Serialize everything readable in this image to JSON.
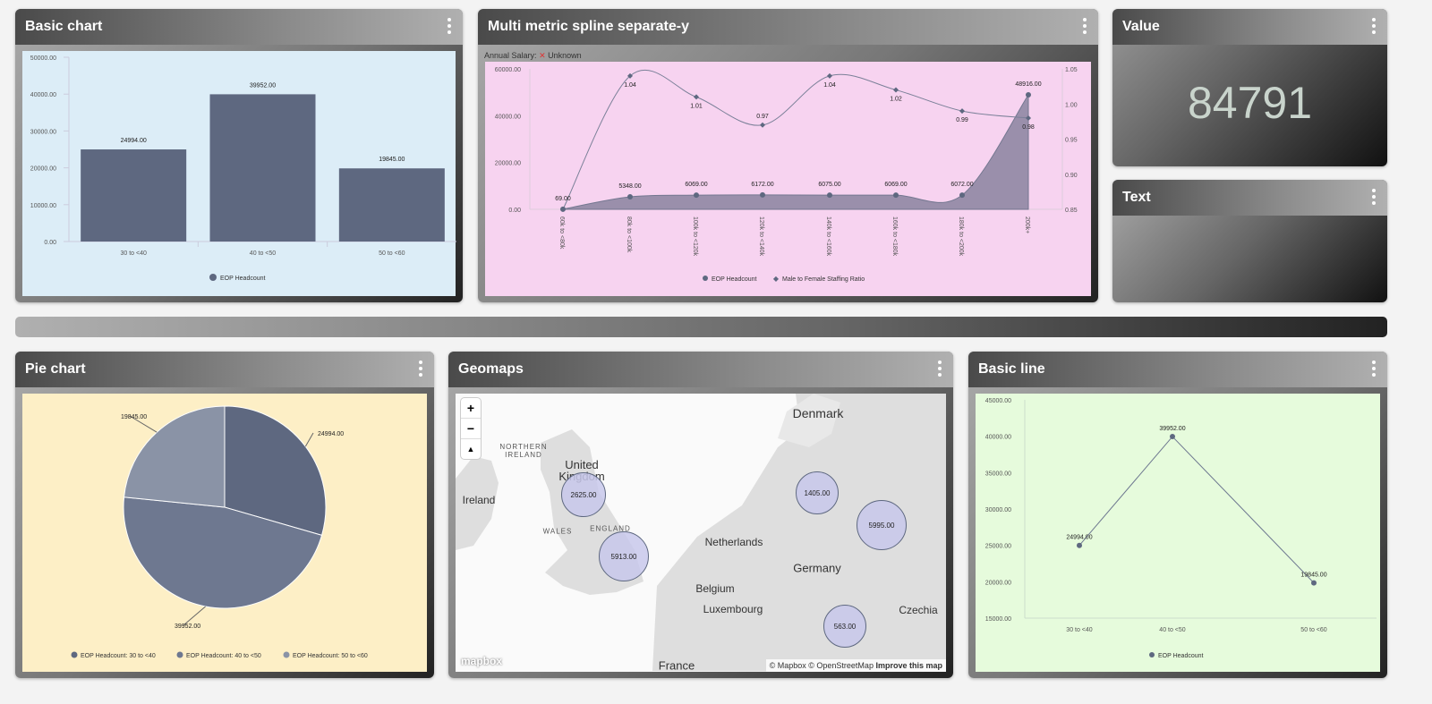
{
  "panels": {
    "basic_chart": "Basic chart",
    "multi": "Multi metric spline separate-y",
    "value": "Value",
    "text": "Text",
    "pie": "Pie chart",
    "geomaps": "Geomaps",
    "basic_line": "Basic line"
  },
  "value_panel": {
    "value": "84791"
  },
  "multi_filter": {
    "label": "Annual Salary:",
    "value": "Unknown"
  },
  "colors": {
    "series": "#5e6880",
    "bar_bg": "#dcedf7",
    "multi_bg": "#f7d3f0",
    "pie_bg": "#fdefc6",
    "line_bg": "#e6fbdc"
  },
  "chart_data": [
    {
      "type": "bar",
      "title": "Basic chart",
      "categories": [
        "30 to <40",
        "40 to <50",
        "50 to <60"
      ],
      "values": [
        24994,
        39952,
        19845
      ],
      "labels": [
        "24994.00",
        "39952.00",
        "19845.00"
      ],
      "yticks": [
        "0.00",
        "10000.00",
        "20000.00",
        "30000.00",
        "40000.00",
        "50000.00"
      ],
      "ylim": [
        0,
        50000
      ],
      "legend": "EOP Headcount"
    },
    {
      "type": "line",
      "title": "Multi metric spline separate-y",
      "categories": [
        "60k to <80k",
        "80k to <100k",
        "100k to <120k",
        "120k to <140k",
        "140k to <160k",
        "160k to <180k",
        "180k to <200k",
        "200k+"
      ],
      "series": [
        {
          "name": "EOP Headcount",
          "values": [
            69,
            5348,
            6069,
            6172,
            6075,
            6069,
            6072,
            48916
          ],
          "labels": [
            "69.00",
            "5348.00",
            "6069.00",
            "6172.00",
            "6075.00",
            "6069.00",
            "6072.00",
            "48916.00"
          ]
        },
        {
          "name": "Male to Female Staffing Ratio",
          "values": [
            0.85,
            1.04,
            1.01,
            0.97,
            1.04,
            1.02,
            0.99,
            0.98
          ],
          "labels": [
            "",
            "1.04",
            "1.01",
            "0.97",
            "1.04",
            "1.02",
            "0.99",
            "0.98"
          ]
        }
      ],
      "yticks_left": [
        "0.00",
        "20000.00",
        "40000.00",
        "60000.00"
      ],
      "ylim_left": [
        0,
        60000
      ],
      "yticks_right": [
        "0.85",
        "0.90",
        "0.95",
        "1.00",
        "1.05"
      ],
      "ylim_right": [
        0.85,
        1.05
      ]
    },
    {
      "type": "pie",
      "title": "Pie chart",
      "values": [
        24994,
        39952,
        19845
      ],
      "labels": [
        "24994.00",
        "39952.00",
        "19845.00"
      ],
      "legend": [
        "EOP Headcount: 30 to <40",
        "EOP Headcount: 40 to <50",
        "EOP Headcount: 50 to <60"
      ],
      "colors": [
        "#5e6880",
        "#6e7890",
        "#8a93a6"
      ]
    },
    {
      "type": "line",
      "title": "Basic line",
      "categories": [
        "30 to <40",
        "40 to <50",
        "50 to <60"
      ],
      "values": [
        24994,
        39952,
        19845
      ],
      "labels": [
        "24994.00",
        "39952.00",
        "19845.00"
      ],
      "yticks": [
        "15000.00",
        "20000.00",
        "25000.00",
        "30000.00",
        "35000.00",
        "40000.00",
        "45000.00"
      ],
      "ylim": [
        15000,
        45000
      ],
      "legend": "EOP Headcount"
    }
  ],
  "map": {
    "places": [
      "Denmark",
      "United Kingdom",
      "Ireland",
      "NORTHERN IRELAND",
      "WALES",
      "ENGLAND",
      "Netherlands",
      "Germany",
      "Belgium",
      "Luxembourg",
      "Czechia",
      "France"
    ],
    "bubbles": [
      "2625.00",
      "5913.00",
      "1405.00",
      "5995.00",
      "563.00"
    ],
    "zoom_in": "+",
    "zoom_out": "−",
    "compass": "▲",
    "logo": "mapbox",
    "attribution": "© Mapbox © OpenStreetMap",
    "improve": "Improve this map"
  }
}
